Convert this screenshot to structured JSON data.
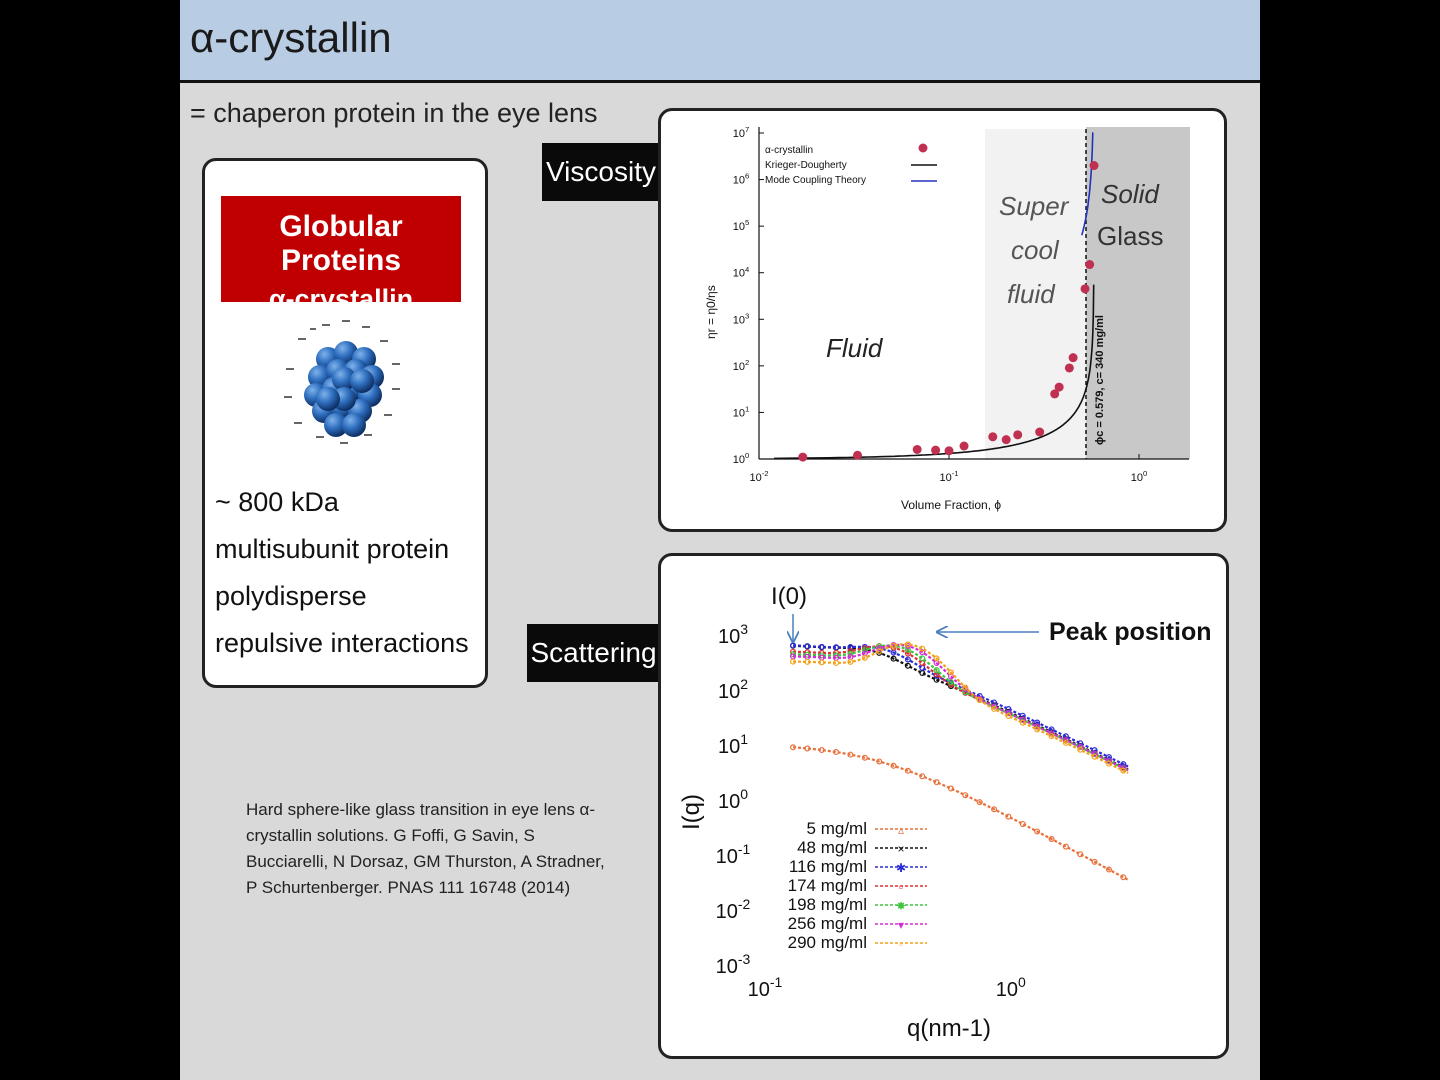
{
  "slide": {
    "title": "α-crystallin",
    "subtitle": "= chaperon protein in the eye lens",
    "box_heading_1": "Globular Proteins",
    "box_heading_2": "α-crystallin",
    "facts": [
      "~ 800 kDa",
      "multisubunit protein",
      "polydisperse",
      "repulsive interactions"
    ],
    "reference": "Hard sphere-like glass transition in eye lens α-crystallin solutions. G Foffi, G Savin, S Bucciarelli, N Dorsaz, GM Thurston, A Stradner, P Schurtenberger.  PNAS 111 16748 (2014)",
    "viscosity_tag": "Viscosity",
    "scattering_tag": "Scattering"
  },
  "chart_data": [
    {
      "type": "scatter",
      "title": "",
      "xlabel": "Volume Fraction,  ϕ",
      "ylabel": "ηr = η0/ηs",
      "xscale": "log",
      "yscale": "log",
      "xlim": [
        0.01,
        1.3
      ],
      "ylim": [
        1,
        10000000
      ],
      "x_ticks": [
        "10-2",
        "10-1",
        "100"
      ],
      "y_ticks": [
        "100",
        "101",
        "102",
        "103",
        "104",
        "105",
        "106",
        "107"
      ],
      "legend": [
        "α-crystallin",
        "Krieger-Dougherty",
        "Mode Coupling Theory"
      ],
      "legend_position": "top-left",
      "regions": [
        "Fluid",
        "Super cool fluid",
        "Solid Glass"
      ],
      "region_labels": {
        "fluid": "Fluid",
        "super_1": "Super",
        "super_2": "cool",
        "super_3": "fluid",
        "solid_1": "Solid",
        "solid_2": "Glass"
      },
      "annotation": "ϕc = 0.579, c= 340 mg/ml",
      "colors": {
        "points": "#c03050",
        "kd": "#111111",
        "mct": "#2233bb",
        "super": "#f2f2f2",
        "solid": "#c8c8c8"
      },
      "series": [
        {
          "name": "α-crystallin",
          "x": [
            0.017,
            0.033,
            0.068,
            0.085,
            0.1,
            0.12,
            0.17,
            0.2,
            0.23,
            0.3,
            0.36,
            0.38,
            0.43,
            0.45,
            0.52,
            0.55,
            0.58
          ],
          "y": [
            1.1,
            1.2,
            1.6,
            1.55,
            1.5,
            1.9,
            3.0,
            2.6,
            3.3,
            3.8,
            25,
            35,
            90,
            150,
            4500,
            15000,
            2000000
          ]
        }
      ]
    },
    {
      "type": "line",
      "title": "",
      "xlabel": "q(nm-1)",
      "ylabel": "I(q)",
      "xscale": "log",
      "yscale": "log",
      "xlim": [
        0.1,
        3.2
      ],
      "ylim": [
        0.001,
        1000
      ],
      "x_ticks": [
        "10-1",
        "100"
      ],
      "y_ticks": [
        "10-3",
        "10-2",
        "10-1",
        "100",
        "101",
        "102",
        "103"
      ],
      "annotations": [
        "I(0)",
        "Peak position"
      ],
      "legend_position": "bottom-left",
      "series": [
        {
          "name": "5 mg/ml",
          "color": "#e8703a",
          "marker": "▵",
          "I0": 11,
          "peak_q": 0,
          "peak_I": 0
        },
        {
          "name": "48 mg/ml",
          "color": "#111111",
          "marker": "×",
          "I0": 380,
          "peak_q": 0.28,
          "peak_I": 520
        },
        {
          "name": "116 mg/ml",
          "color": "#2b2bd9",
          "marker": "✱",
          "I0": 360,
          "peak_q": 0.31,
          "peak_I": 560
        },
        {
          "name": "174 mg/ml",
          "color": "#e03030",
          "marker": "▫",
          "I0": 260,
          "peak_q": 0.34,
          "peak_I": 600
        },
        {
          "name": "198 mg/ml",
          "color": "#3ec43e",
          "marker": "✸",
          "I0": 230,
          "peak_q": 0.36,
          "peak_I": 620
        },
        {
          "name": "256 mg/ml",
          "color": "#d52bd5",
          "marker": "▾",
          "I0": 200,
          "peak_q": 0.39,
          "peak_I": 640
        },
        {
          "name": "290 mg/ml",
          "color": "#f2a21c",
          "marker": "◦",
          "I0": 160,
          "peak_q": 0.41,
          "peak_I": 660
        }
      ]
    }
  ]
}
